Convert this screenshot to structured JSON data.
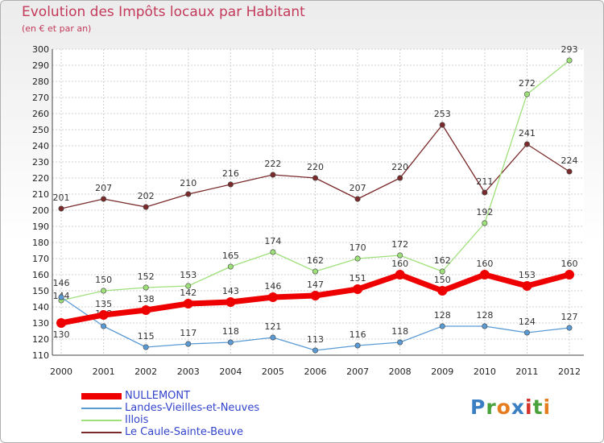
{
  "header": {
    "title": "Evolution des Impôts locaux par Habitant",
    "subtitle": "(en € et par an)"
  },
  "logo": {
    "text": "Proxiti",
    "colors": [
      "#3a7fc4",
      "#4aa23c",
      "#e57c1f",
      "#3a7fc4",
      "#d4322a",
      "#4aa23c",
      "#e57c1f"
    ]
  },
  "chart_data": {
    "type": "line",
    "title": "Evolution des Impôts locaux par Habitant",
    "subtitle": "(en € et par an)",
    "categories": [
      "2000",
      "2001",
      "2002",
      "2003",
      "2004",
      "2005",
      "2006",
      "2007",
      "2008",
      "2009",
      "2010",
      "2011",
      "2012"
    ],
    "ylim": [
      110,
      300
    ],
    "yticks": [
      110,
      120,
      130,
      140,
      150,
      160,
      170,
      180,
      190,
      200,
      210,
      220,
      230,
      240,
      250,
      260,
      270,
      280,
      290,
      300
    ],
    "grid": true,
    "legend_position": "bottom-left",
    "series": [
      {
        "name": "NULLEMONT",
        "color": "#ee0000",
        "values": [
          130,
          135,
          138,
          142,
          143,
          146,
          147,
          151,
          160,
          150,
          160,
          153,
          160
        ]
      },
      {
        "name": "Landes-Vieilles-et-Neuves",
        "color": "#5b9bd5",
        "values": [
          146,
          128,
          115,
          117,
          118,
          121,
          113,
          116,
          118,
          128,
          128,
          124,
          127
        ]
      },
      {
        "name": "Illois",
        "color": "#9ee07a",
        "values": [
          144,
          150,
          152,
          153,
          165,
          174,
          162,
          170,
          172,
          162,
          192,
          272,
          293
        ]
      },
      {
        "name": "Le Caule-Sainte-Beuve",
        "color": "#7a2a2a",
        "values": [
          201,
          207,
          202,
          210,
          216,
          222,
          220,
          207,
          220,
          253,
          211,
          241,
          224
        ]
      }
    ]
  }
}
